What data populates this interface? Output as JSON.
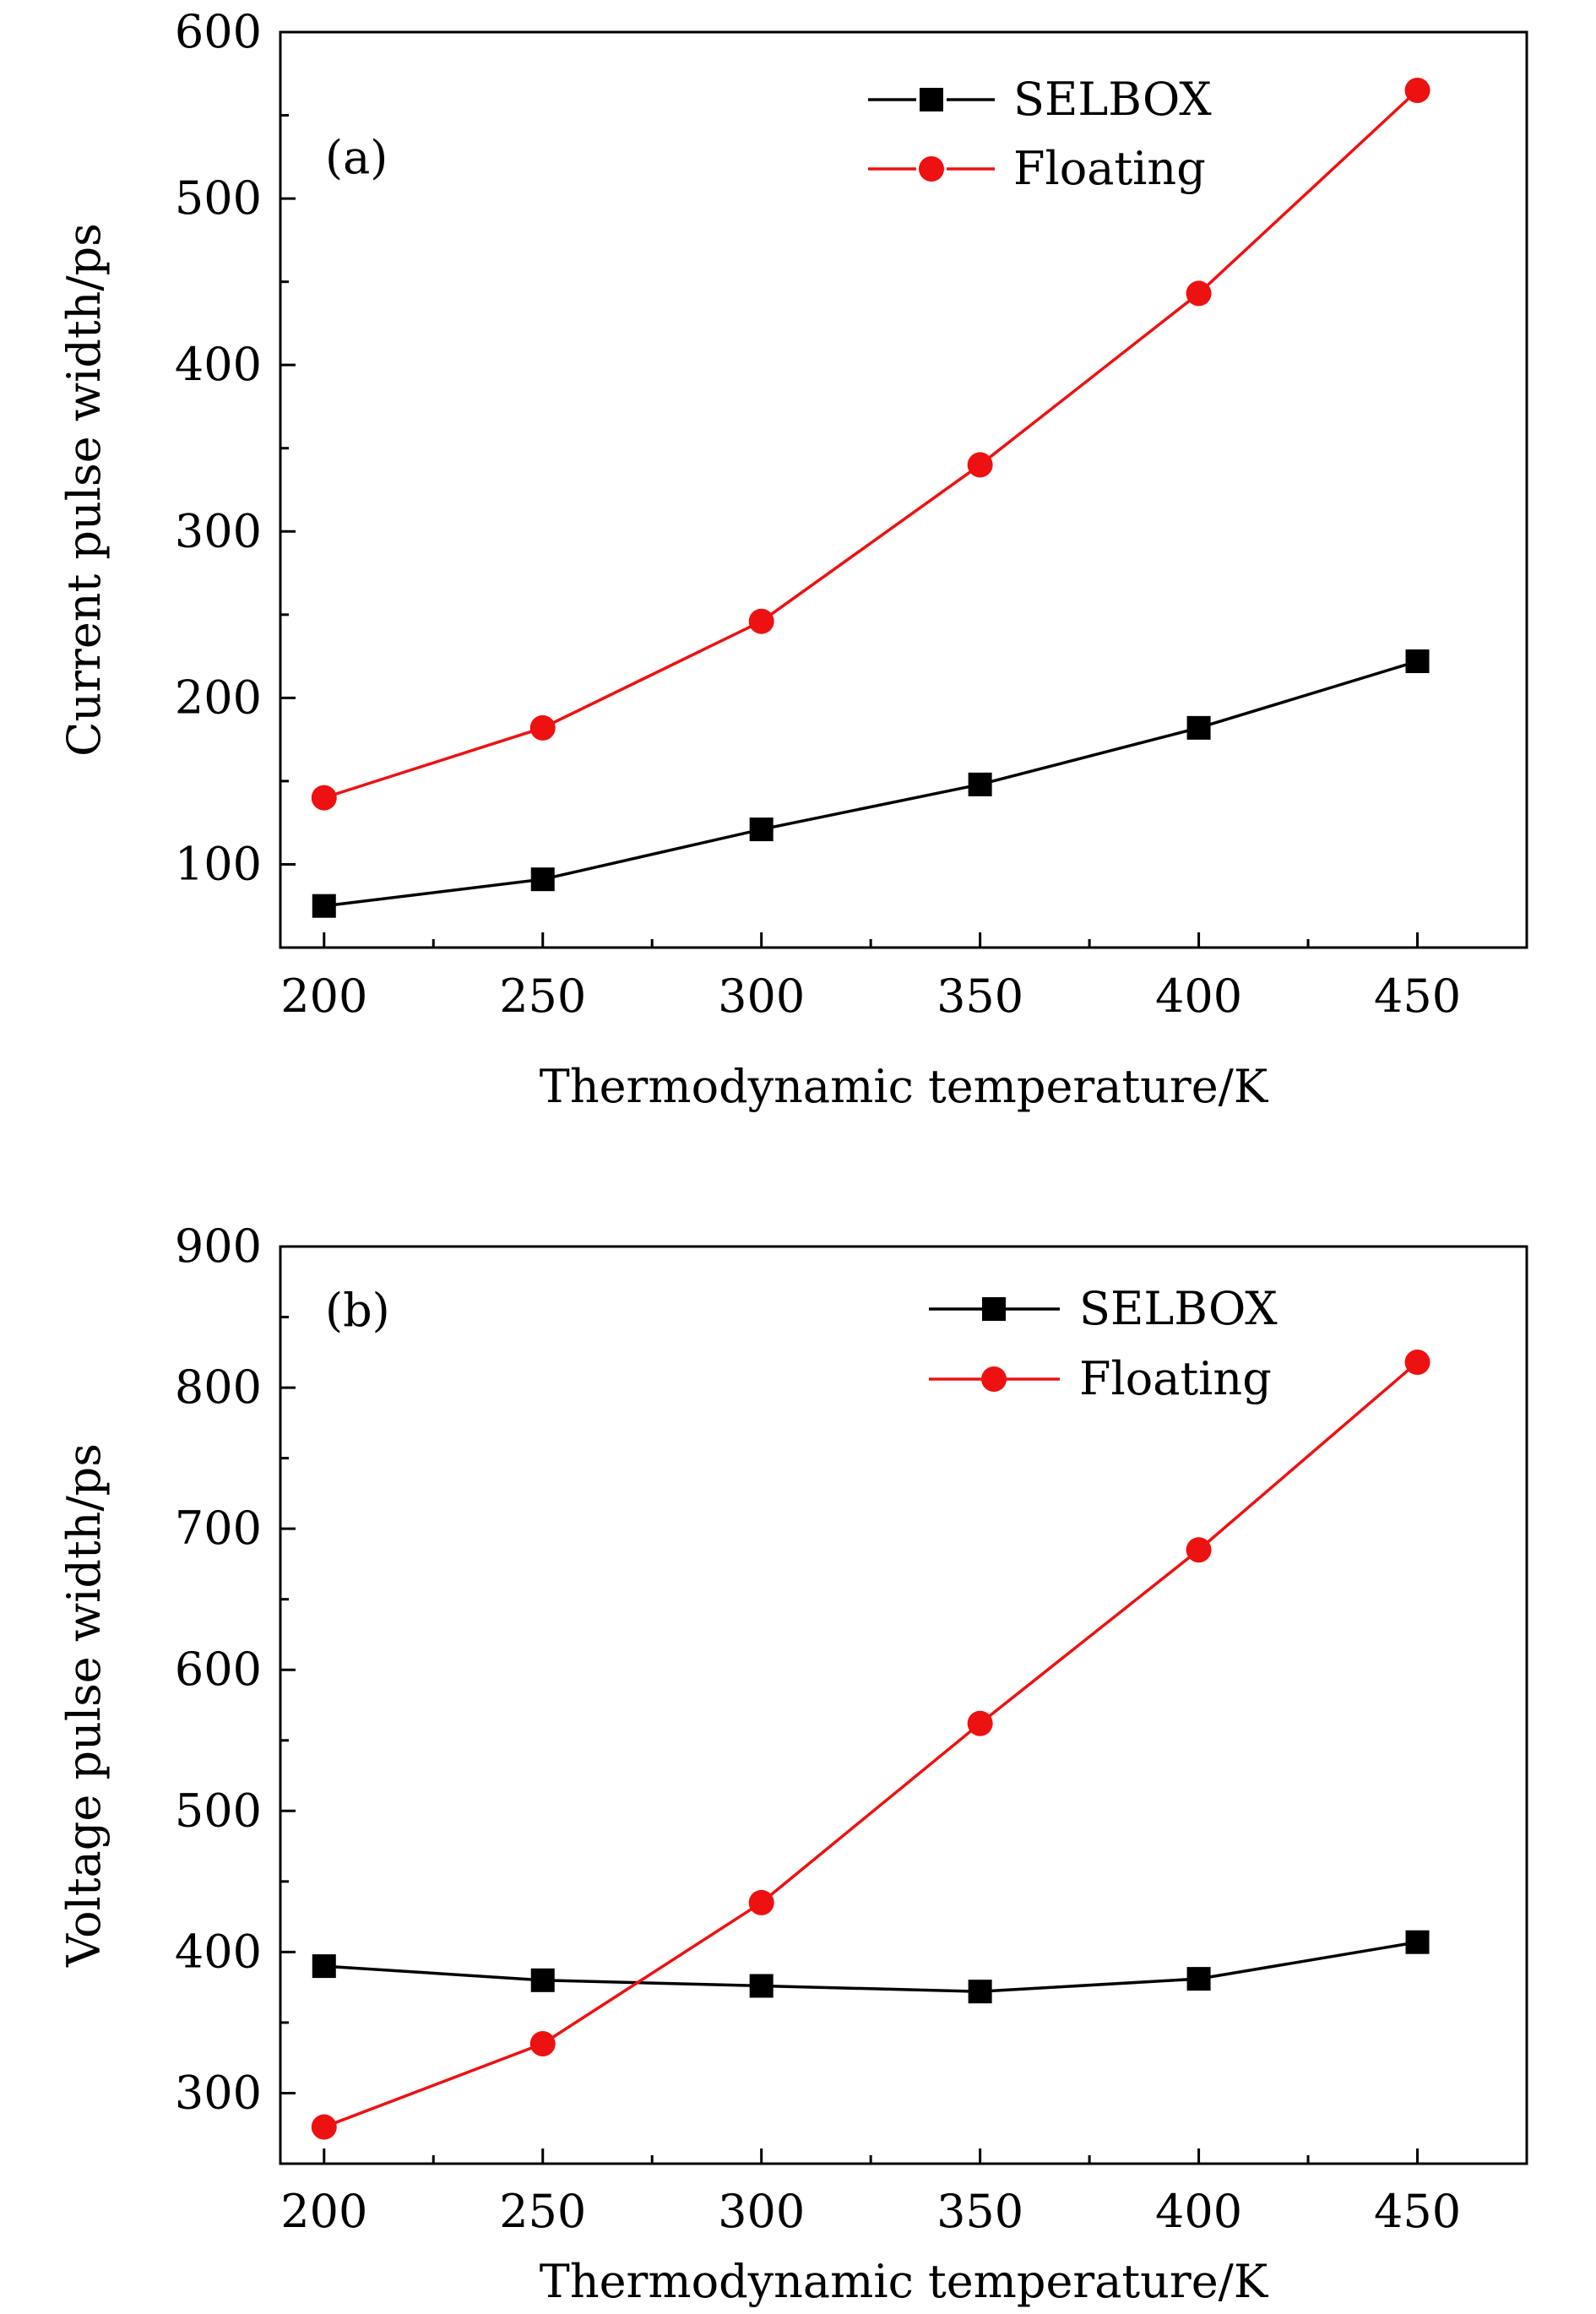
{
  "chart_data": [
    {
      "type": "line",
      "panel_label": "(a)",
      "xlabel": "Thermodynamic temperature/K",
      "ylabel": "Current pulse width/ps",
      "x": [
        200,
        250,
        300,
        350,
        400,
        450
      ],
      "xlim": [
        190,
        475
      ],
      "ylim": [
        50,
        600
      ],
      "xticks": [
        200,
        250,
        300,
        350,
        400,
        450
      ],
      "yticks": [
        100,
        200,
        300,
        400,
        500,
        600
      ],
      "legend_position": "top-right",
      "grid": false,
      "series": [
        {
          "name": "SELBOX",
          "color": "#000000",
          "marker": "square",
          "values": [
            75,
            91,
            121,
            148,
            182,
            222
          ]
        },
        {
          "name": "Floating",
          "color": "#ee1111",
          "marker": "circle",
          "values": [
            140,
            182,
            246,
            340,
            443,
            565
          ]
        }
      ]
    },
    {
      "type": "line",
      "panel_label": "(b)",
      "xlabel": "Thermodynamic temperature/K",
      "ylabel": "Voltage pulse width/ps",
      "x": [
        200,
        250,
        300,
        350,
        400,
        450
      ],
      "xlim": [
        190,
        475
      ],
      "ylim": [
        250,
        900
      ],
      "xticks": [
        200,
        250,
        300,
        350,
        400,
        450
      ],
      "yticks": [
        300,
        400,
        500,
        600,
        700,
        800,
        900
      ],
      "legend_position": "top-right",
      "grid": false,
      "series": [
        {
          "name": "SELBOX",
          "color": "#000000",
          "marker": "square",
          "values": [
            390,
            380,
            376,
            372,
            381,
            407
          ]
        },
        {
          "name": "Floating",
          "color": "#ee1111",
          "marker": "circle",
          "values": [
            276,
            335,
            435,
            562,
            685,
            818
          ]
        }
      ]
    }
  ]
}
